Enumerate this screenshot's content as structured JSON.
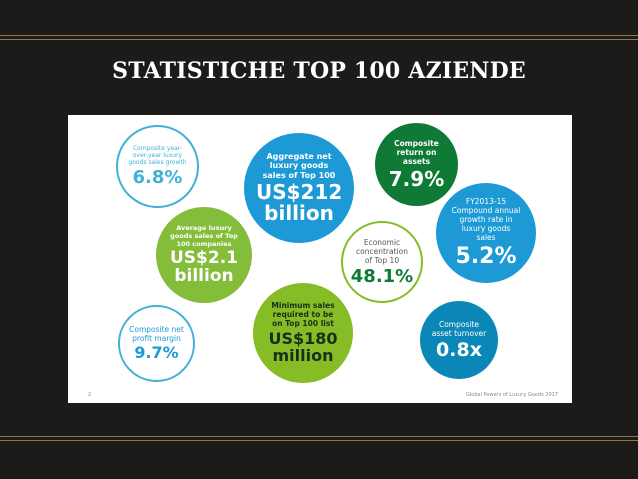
{
  "slide_title": "STATISTICHE TOP 100 AZIENDE",
  "colors": {
    "background": "#1c1b1a",
    "rule": "#8f7a45",
    "light_blue": "#43b0d6",
    "blue": "#1d9ad6",
    "dark_green": "#0e7a36",
    "green": "#84bd3a",
    "light_green": "#86bc25",
    "teal": "#0b87b7"
  },
  "stats": [
    {
      "id": "yoy",
      "label": "Composite year-over-year luxury goods sales growth",
      "value": "6.8%"
    },
    {
      "id": "aggregate",
      "label": "Aggregate net luxury goods sales of Top 100",
      "value": "US$212 billion"
    },
    {
      "id": "roa",
      "label": "Composite return on assets",
      "value": "7.9%"
    },
    {
      "id": "average",
      "label": "Average luxury goods sales of Top 100 companies",
      "value": "US$2.1 billion"
    },
    {
      "id": "concentration",
      "label": "Economic concentration of Top 10",
      "value": "48.1%"
    },
    {
      "id": "cagr",
      "label": "FY2013-15 Compound annual growth rate in luxury goods sales",
      "value": "5.2%"
    },
    {
      "id": "margin",
      "label": "Composite net profit margin",
      "value": "9.7%"
    },
    {
      "id": "minimum",
      "label": "Minimum sales required to be on Top 100 list",
      "value": "US$180 million"
    },
    {
      "id": "turnover",
      "label": "Composite asset turnover",
      "value": "0.8x"
    }
  ],
  "footer": {
    "page": "2",
    "source": "Global Powers of Luxury Goods 2017"
  }
}
